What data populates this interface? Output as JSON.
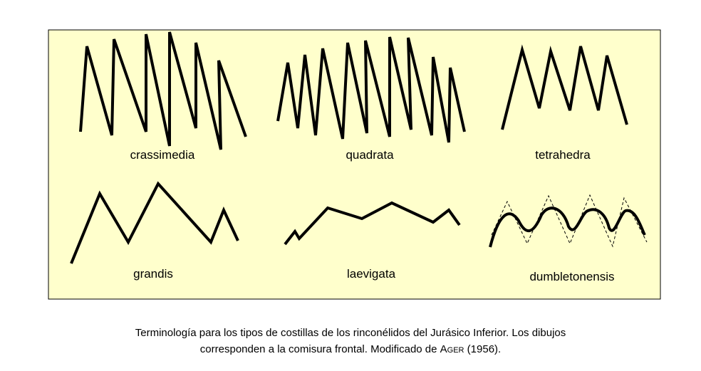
{
  "panels": [
    {
      "label": "crassimedia"
    },
    {
      "label": "quadrata"
    },
    {
      "label": "tetrahedra"
    },
    {
      "label": "grandis"
    },
    {
      "label": "laevigata"
    },
    {
      "label": "dumbletonensis"
    }
  ],
  "caption": {
    "line1": "Terminología para los tipos de costillas de los rinconélidos del Jurásico Inferior. Los dibujos",
    "line2_start": "corresponden a la comisura frontal. Modificado de ",
    "author": "Ager",
    "line2_end": " (1956)."
  }
}
